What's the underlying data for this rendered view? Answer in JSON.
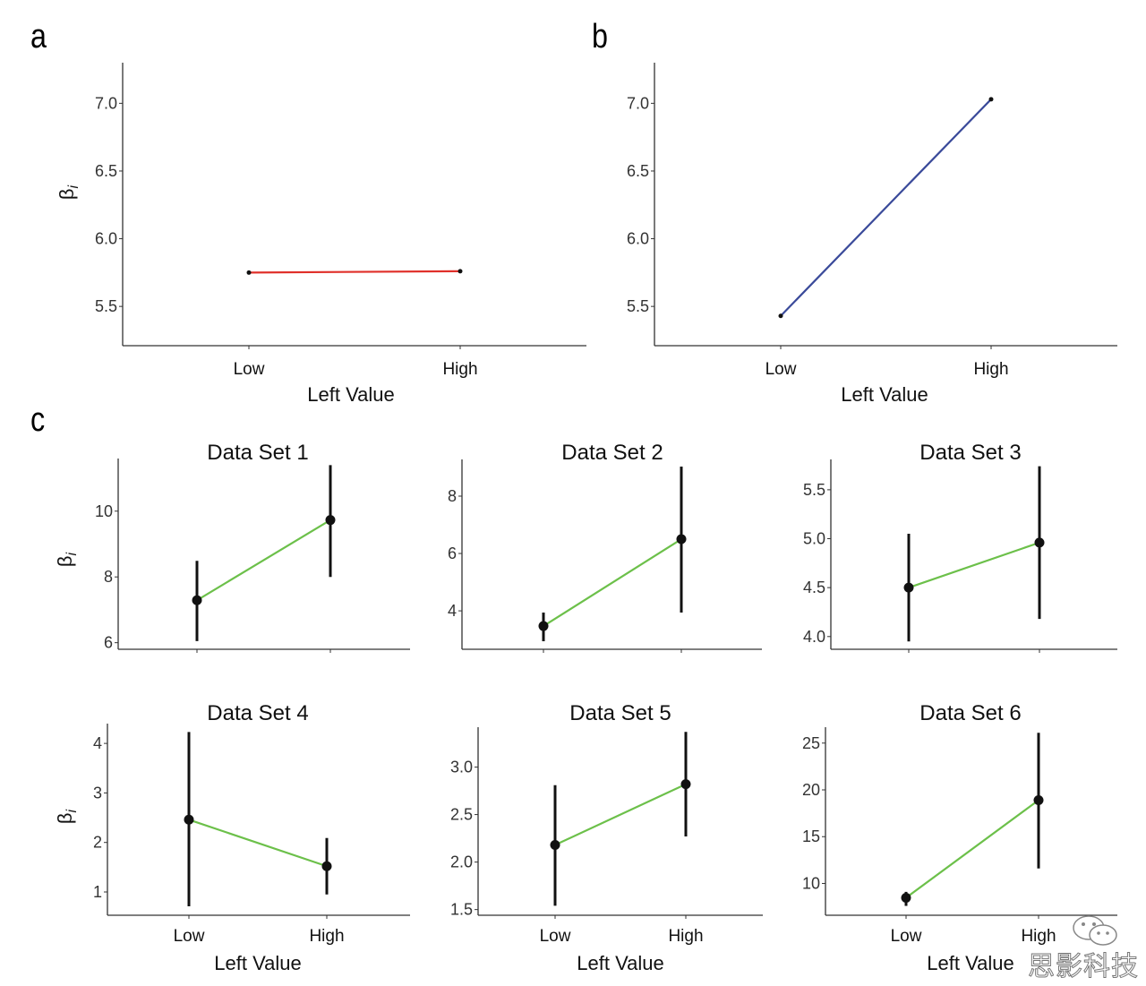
{
  "panel_labels": [
    "a",
    "b",
    "c"
  ],
  "watermark": "思影科技",
  "colors": {
    "panel_a": "#e0302a",
    "panel_b": "#3a4a9a",
    "panel_c": "#6cc04a",
    "points": "#111111"
  },
  "chart_data": [
    {
      "id": "a",
      "type": "line",
      "title": "",
      "xlabel": "Left Value",
      "ylabel": "βi",
      "categories": [
        "Low",
        "High"
      ],
      "values": [
        5.75,
        5.76
      ],
      "ylim": [
        5.21,
        7.3
      ],
      "yticks": [
        "5.5",
        "6.0",
        "6.5",
        "7.0"
      ],
      "grid": false,
      "color": "#e0302a"
    },
    {
      "id": "b",
      "type": "line",
      "title": "",
      "xlabel": "Left Value",
      "ylabel": "",
      "categories": [
        "Low",
        "High"
      ],
      "values": [
        5.43,
        7.03
      ],
      "ylim": [
        5.21,
        7.3
      ],
      "yticks": [
        "5.5",
        "6.0",
        "6.5",
        "7.0"
      ],
      "grid": false,
      "color": "#3a4a9a"
    },
    {
      "id": "c1",
      "type": "line",
      "title": "Data Set 1",
      "xlabel": "",
      "ylabel": "βi",
      "categories": [
        "Low",
        "High"
      ],
      "show_xticklabels": false,
      "values": [
        7.29,
        9.73
      ],
      "error_low": [
        6.05,
        8.0
      ],
      "error_high": [
        8.49,
        11.4
      ],
      "ylim": [
        5.8,
        11.6
      ],
      "yticks": [
        "6",
        "8",
        "10"
      ],
      "grid": false,
      "color": "#6cc04a"
    },
    {
      "id": "c2",
      "type": "line",
      "title": "Data Set 2",
      "xlabel": "",
      "ylabel": "",
      "categories": [
        "Low",
        "High"
      ],
      "show_xticklabels": false,
      "values": [
        3.47,
        6.5
      ],
      "error_low": [
        2.94,
        3.94
      ],
      "error_high": [
        3.94,
        9.03
      ],
      "ylim": [
        2.66,
        9.28
      ],
      "yticks": [
        "4",
        "6",
        "8"
      ],
      "grid": false,
      "color": "#6cc04a"
    },
    {
      "id": "c3",
      "type": "line",
      "title": "Data Set 3",
      "xlabel": "",
      "ylabel": "",
      "categories": [
        "Low",
        "High"
      ],
      "show_xticklabels": false,
      "values": [
        4.5,
        4.96
      ],
      "error_low": [
        3.95,
        4.18
      ],
      "error_high": [
        5.05,
        5.74
      ],
      "ylim": [
        3.87,
        5.81
      ],
      "yticks": [
        "4.0",
        "4.5",
        "5.0",
        "5.5"
      ],
      "grid": false,
      "color": "#6cc04a"
    },
    {
      "id": "c4",
      "type": "line",
      "title": "Data Set 4",
      "xlabel": "Left Value",
      "ylabel": "βi",
      "categories": [
        "Low",
        "High"
      ],
      "values": [
        2.46,
        1.52
      ],
      "error_low": [
        0.71,
        0.95
      ],
      "error_high": [
        4.23,
        2.09
      ],
      "ylim": [
        0.53,
        4.4
      ],
      "yticks": [
        "1",
        "2",
        "3",
        "4"
      ],
      "grid": false,
      "color": "#6cc04a"
    },
    {
      "id": "c5",
      "type": "line",
      "title": "Data Set 5",
      "xlabel": "Left Value",
      "ylabel": "",
      "categories": [
        "Low",
        "High"
      ],
      "values": [
        2.18,
        2.82
      ],
      "error_low": [
        1.54,
        2.27
      ],
      "error_high": [
        2.81,
        3.37
      ],
      "ylim": [
        1.44,
        3.42
      ],
      "yticks": [
        "1.5",
        "2.0",
        "2.5",
        "3.0"
      ],
      "grid": false,
      "color": "#6cc04a"
    },
    {
      "id": "c6",
      "type": "line",
      "title": "Data Set 6",
      "xlabel": "Left Value",
      "ylabel": "",
      "categories": [
        "Low",
        "High"
      ],
      "values": [
        8.47,
        18.9
      ],
      "error_low": [
        7.6,
        11.6
      ],
      "error_high": [
        9.1,
        26.1
      ],
      "ylim": [
        6.6,
        26.7
      ],
      "yticks": [
        "10",
        "15",
        "20",
        "25"
      ],
      "grid": false,
      "color": "#6cc04a"
    }
  ]
}
